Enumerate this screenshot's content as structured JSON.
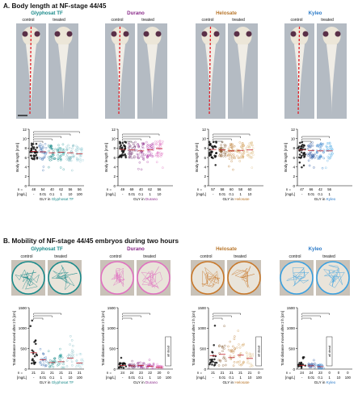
{
  "section_a": {
    "title": "A. Body length at NF-stage 44/45",
    "panels": [
      {
        "name": "Glyphosat TF",
        "color": "#1a8a8a",
        "sub_labels": [
          "control",
          "treated"
        ],
        "ylabel": "Body length [mm]",
        "unit": "[mg/L]",
        "conc": [
          "-",
          "0.01",
          "0.1",
          "1",
          "10",
          "100"
        ],
        "n": [
          "48",
          "54",
          "40",
          "62",
          "56",
          "56"
        ],
        "gly_label": "GLY in",
        "agent_label": "Glyphosat TF",
        "chart_data": {
          "type": "scatter",
          "ylim": [
            0,
            12
          ],
          "yticks": [
            0,
            2,
            4,
            6,
            8,
            10,
            12
          ],
          "groups": [
            7.3,
            7.2,
            7.0,
            7.1,
            7.0,
            6.8
          ],
          "group_colors": [
            "#111111",
            "#3a6fb0",
            "#1a8a8a",
            "#2a9a9a",
            "#7ab8c0",
            "#9cd0d8"
          ]
        }
      },
      {
        "name": "Durano",
        "color": "#8a2b8a",
        "sub_labels": [
          "control",
          "treated"
        ],
        "ylabel": "Body length [mm]",
        "unit": "[mg/L]",
        "conc": [
          "-",
          "0.01",
          "0.1",
          "1",
          "10"
        ],
        "n": [
          "49",
          "69",
          "40",
          "62",
          "56"
        ],
        "gly_label": "GLY in",
        "agent_label": "Durano",
        "chart_data": {
          "type": "scatter",
          "ylim": [
            0,
            12
          ],
          "yticks": [
            0,
            2,
            4,
            6,
            8,
            10,
            12
          ],
          "groups": [
            7.7,
            7.6,
            7.4,
            7.6,
            7.9
          ],
          "group_colors": [
            "#111111",
            "#6a2a6a",
            "#8a2b8a",
            "#b03aa8",
            "#e070c0"
          ]
        }
      },
      {
        "name": "Helosate",
        "color": "#b8762a",
        "sub_labels": [
          "control",
          "treated"
        ],
        "ylabel": "Body length [mm]",
        "unit": "[mg/L]",
        "conc": [
          "-",
          "0.01",
          "0.1",
          "1",
          "10"
        ],
        "n": [
          "57",
          "58",
          "60",
          "58",
          "60"
        ],
        "gly_label": "GLY in",
        "agent_label": "Helosate",
        "chart_data": {
          "type": "scatter",
          "ylim": [
            0,
            12
          ],
          "yticks": [
            0,
            2,
            4,
            6,
            8,
            10,
            12
          ],
          "groups": [
            7.7,
            7.6,
            7.4,
            7.5,
            7.6
          ],
          "group_colors": [
            "#111111",
            "#7a4a1a",
            "#b8762a",
            "#d09a50",
            "#e0c08a"
          ]
        }
      },
      {
        "name": "Kyleo",
        "color": "#2a7ac8",
        "sub_labels": [
          "control",
          "treated"
        ],
        "ylabel": "Body length [mm]",
        "unit": "[mg/L]",
        "conc": [
          "-",
          "0.01",
          "0.1",
          "1"
        ],
        "n": [
          "47",
          "66",
          "42",
          "56"
        ],
        "gly_label": "GLY in",
        "agent_label": "Kyleo",
        "chart_data": {
          "type": "scatter",
          "ylim": [
            0,
            12
          ],
          "yticks": [
            0,
            2,
            4,
            6,
            8,
            10,
            12
          ],
          "groups": [
            7.6,
            7.5,
            7.4,
            7.4
          ],
          "group_colors": [
            "#111111",
            "#1a4a9a",
            "#2a7ac8",
            "#5ab0e8"
          ]
        }
      }
    ]
  },
  "section_b": {
    "title": "B. Mobility of NF-stage 44/45 embryos during two hours",
    "panels": [
      {
        "name": "Glyphosat TF",
        "color": "#1a8a8a",
        "sub_labels": [
          "control",
          "treated"
        ],
        "track_color": "#1a8a8a",
        "ylabel": "Total distance moved after 2 h [cm]",
        "unit": "[mg/L]",
        "conc": [
          "-",
          "0.01",
          "0.1",
          "1",
          "10",
          "100"
        ],
        "n": [
          "21",
          "21",
          "21",
          "21",
          "21",
          "21"
        ],
        "gly_label": "GLY in",
        "agent_label": "Glyphosat TF",
        "dead_label": "",
        "chart_data": {
          "type": "scatter",
          "ylim": [
            0,
            1500
          ],
          "yticks": [
            0,
            500,
            1000,
            1500
          ],
          "groups": [
            400,
            230,
            160,
            180,
            270,
            150
          ],
          "group_colors": [
            "#111111",
            "#3a6fb0",
            "#1a8a8a",
            "#2a9a9a",
            "#7ab8c0",
            "#9cd0d8"
          ]
        }
      },
      {
        "name": "Durano",
        "color": "#8a2b8a",
        "sub_labels": [
          "control",
          "treated"
        ],
        "track_color": "#e070c0",
        "ylabel": "Total distance moved after 2 h [cm]",
        "unit": "[mg/L]",
        "conc": [
          "-",
          "0.01",
          "0.1",
          "1",
          "10",
          "100"
        ],
        "n": [
          "24",
          "24",
          "23",
          "22",
          "20",
          "0"
        ],
        "gly_label": "GLY in",
        "agent_label": "Durano",
        "dead_label": "all dead",
        "chart_data": {
          "type": "scatter",
          "ylim": [
            0,
            1500
          ],
          "yticks": [
            0,
            500,
            1000,
            1500
          ],
          "groups": [
            90,
            80,
            90,
            70,
            40,
            0
          ],
          "group_colors": [
            "#111111",
            "#6a2a6a",
            "#8a2b8a",
            "#b03aa8",
            "#e070c0",
            "#f0a0d8"
          ]
        }
      },
      {
        "name": "Helosate",
        "color": "#b8762a",
        "sub_labels": [
          "control",
          "treated"
        ],
        "track_color": "#c8782a",
        "ylabel": "Total distance moved after 2 h [cm]",
        "unit": "[mg/L]",
        "conc": [
          "-",
          "0.01",
          "0.1",
          "1",
          "10",
          "100"
        ],
        "n": [
          "21",
          "21",
          "21",
          "21",
          "21",
          "0"
        ],
        "gly_label": "GLY in",
        "agent_label": "Helosate",
        "dead_label": "all dead",
        "chart_data": {
          "type": "scatter",
          "ylim": [
            0,
            1500
          ],
          "yticks": [
            0,
            500,
            1000,
            1500
          ],
          "groups": [
            330,
            360,
            280,
            340,
            260,
            0
          ],
          "group_colors": [
            "#111111",
            "#7a4a1a",
            "#b8762a",
            "#d09a50",
            "#e0c08a",
            "#f0d8b0"
          ]
        }
      },
      {
        "name": "Kyleo",
        "color": "#2a7ac8",
        "sub_labels": [
          "control",
          "treated"
        ],
        "track_color": "#3aa0e0",
        "ylabel": "Total distance moved after 2 h [cm]",
        "unit": "[mg/L]",
        "conc": [
          "-",
          "0.01",
          "0.1",
          "1",
          "10",
          "100"
        ],
        "n": [
          "24",
          "24",
          "23",
          "0",
          "0",
          "0"
        ],
        "gly_label": "GLY in",
        "agent_label": "Kyleo",
        "dead_label": "all dead",
        "chart_data": {
          "type": "scatter",
          "ylim": [
            0,
            1500
          ],
          "yticks": [
            0,
            500,
            1000,
            1500
          ],
          "groups": [
            90,
            80,
            60,
            0,
            0,
            0
          ],
          "group_colors": [
            "#111111",
            "#1a4a9a",
            "#2a7ac8",
            "#5ab0e8",
            "#8ac8f0",
            "#b8e0f8"
          ]
        }
      }
    ]
  }
}
